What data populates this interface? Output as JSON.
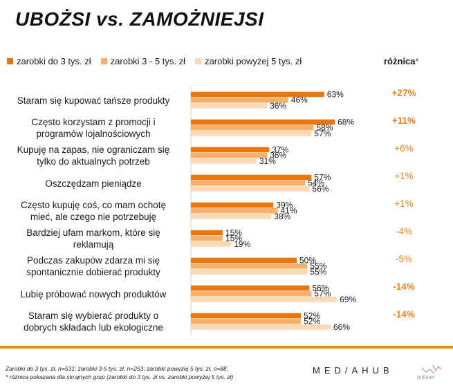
{
  "title": "UBOŻSI vs. ZAMOŻNIEJSI",
  "legend": [
    {
      "label": "zarobki do 3 tys. zł",
      "color": "#e8760c"
    },
    {
      "label": "zarobki 3 - 5 tys. zł",
      "color": "#f6b06a"
    },
    {
      "label": "zarobki powyżej 5 tys. zł",
      "color": "#fbd9b8"
    }
  ],
  "diff_header": {
    "label": "różnica",
    "star": "*"
  },
  "colors": {
    "accent": "#e8801a",
    "rule": "#f08a1c"
  },
  "chart_data": {
    "type": "bar",
    "orientation": "horizontal",
    "title": "UBOŻSI vs. ZAMOŻNIEJSI",
    "xlim": [
      0,
      100
    ],
    "categories": [
      "Staram się kupować tańsze produkty",
      "Często korzystam z promocji i programów lojalnościowych",
      "Kupuję na zapas, nie ograniczam się tylko do aktualnych potrzeb",
      "Oszczędzam pieniądze",
      "Często kupuję coś, co mam ochotę mieć, ale czego nie potrzebuję",
      "Bardziej ufam markom, które się reklamują",
      "Podczas zakupów zdarza mi się spontanicznie dobierać produkty",
      "Lubię próbować nowych produktów",
      "Staram się wybierać produkty o dobrych składach lub ekologiczne"
    ],
    "series": [
      {
        "name": "zarobki do 3 tys. zł",
        "values": [
          63,
          68,
          37,
          57,
          39,
          15,
          50,
          56,
          52
        ]
      },
      {
        "name": "zarobki 3 - 5 tys. zł",
        "values": [
          46,
          58,
          36,
          54,
          41,
          15,
          55,
          57,
          52
        ]
      },
      {
        "name": "zarobki powyżej 5 tys. zł",
        "values": [
          36,
          57,
          31,
          56,
          38,
          19,
          55,
          69,
          66
        ]
      }
    ],
    "value_suffix": "%",
    "differences": [
      "+27%",
      "+11%",
      "+6%",
      "+1%",
      "+1%",
      "-4%",
      "-5%",
      "-14%",
      "-14%"
    ],
    "differences_bold": [
      true,
      true,
      false,
      false,
      false,
      false,
      false,
      true,
      true
    ]
  },
  "row_labels": [
    [
      "Staram się kupować tańsze produkty"
    ],
    [
      "Często korzystam z promocji i",
      "programów lojalnościowych"
    ],
    [
      "Kupuję na zapas, nie ograniczam się",
      "tylko do aktualnych potrzeb"
    ],
    [
      "Oszczędzam pieniądze"
    ],
    [
      "Często kupuję coś, co mam ochotę",
      "mieć, ale czego nie potrzebuję"
    ],
    [
      "Bardziej ufam markom, które się",
      "reklamują"
    ],
    [
      "Podczas zakupów zdarza mi się",
      "spontanicznie dobierać produkty"
    ],
    [
      "Lubię próbować nowych produktów"
    ],
    [
      "Staram się wybierać produkty o",
      "dobrych składach lub ekologiczne"
    ]
  ],
  "footnotes": {
    "line1": "Zarobki do 3 tys. zł, n=531; zarobki 3-5 tys. zł, n=253; zarobki powyżej 5 tys. zł, n=88.",
    "line2": "* różnica pokazana dla skrajnych grup (zarobki do 3 tys. zł vs. zarobki powyżej 5 tys. zł)"
  },
  "brand": "MED/AHUB",
  "pollster": "pollster"
}
